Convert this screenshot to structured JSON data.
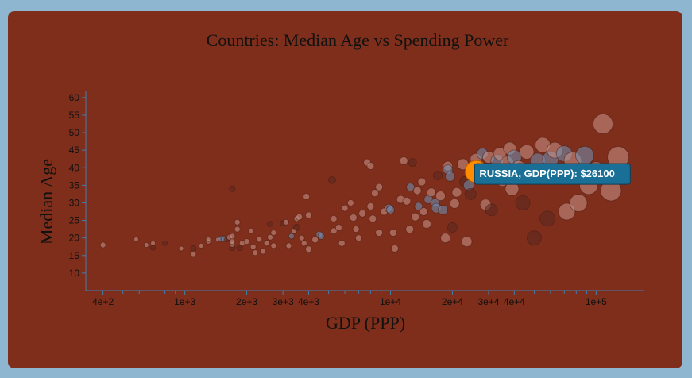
{
  "chart_data": {
    "type": "scatter",
    "title": "Countries: Median Age vs Spending Power",
    "xlabel": "GDP (PPP)",
    "ylabel": "Median Age",
    "x_scale": "log",
    "xlim": [
      330,
      170000
    ],
    "ylim": [
      5,
      62
    ],
    "x_ticks": [
      {
        "value": 400,
        "label": "4e+2"
      },
      {
        "value": 1000,
        "label": "1e+3"
      },
      {
        "value": 2000,
        "label": "2e+3"
      },
      {
        "value": 3000,
        "label": "3e+3"
      },
      {
        "value": 4000,
        "label": "4e+3"
      },
      {
        "value": 10000,
        "label": "1e+4"
      },
      {
        "value": 20000,
        "label": "2e+4"
      },
      {
        "value": 30000,
        "label": "3e+4"
      },
      {
        "value": 40000,
        "label": "4e+4"
      },
      {
        "value": 100000,
        "label": "1e+5"
      }
    ],
    "x_minor_ticks": [
      500,
      600,
      700,
      800,
      900,
      5000,
      6000,
      7000,
      8000,
      9000,
      50000,
      60000,
      70000,
      80000,
      90000
    ],
    "y_ticks": [
      10,
      15,
      20,
      25,
      30,
      35,
      40,
      45,
      50,
      55,
      60
    ],
    "grid": false,
    "colors": {
      "point_warm": "#c9958a",
      "point_dark": "#5a2a20",
      "point_blue": "#6f93b8",
      "highlight": "#ff8c00",
      "tooltip_bg": "#1a6f96"
    },
    "highlight": {
      "x": 26100,
      "y": 38.9,
      "tooltip": "RUSSIA, GDP(PPP): $26100"
    },
    "points": [
      {
        "x": 400,
        "y": 18,
        "s": 3.5,
        "c": "w"
      },
      {
        "x": 580,
        "y": 19.6,
        "s": 3,
        "c": "w"
      },
      {
        "x": 650,
        "y": 18,
        "s": 3,
        "c": "w"
      },
      {
        "x": 700,
        "y": 18.5,
        "s": 3,
        "c": "w"
      },
      {
        "x": 700,
        "y": 17.2,
        "s": 3,
        "c": "d"
      },
      {
        "x": 800,
        "y": 18.5,
        "s": 3,
        "c": "d"
      },
      {
        "x": 960,
        "y": 17,
        "s": 3,
        "c": "w"
      },
      {
        "x": 1100,
        "y": 15.5,
        "s": 3.5,
        "c": "w"
      },
      {
        "x": 1100,
        "y": 17,
        "s": 3.5,
        "c": "d"
      },
      {
        "x": 1200,
        "y": 17.8,
        "s": 3,
        "c": "w"
      },
      {
        "x": 1300,
        "y": 19,
        "s": 3,
        "c": "w"
      },
      {
        "x": 1300,
        "y": 19.6,
        "s": 3,
        "c": "w"
      },
      {
        "x": 1450,
        "y": 19.5,
        "s": 3,
        "c": "w"
      },
      {
        "x": 1500,
        "y": 19.8,
        "s": 3.5,
        "c": "b"
      },
      {
        "x": 1550,
        "y": 19.8,
        "s": 3.5,
        "c": "b"
      },
      {
        "x": 1600,
        "y": 19.6,
        "s": 3,
        "c": "d"
      },
      {
        "x": 1650,
        "y": 20.2,
        "s": 3.5,
        "c": "w"
      },
      {
        "x": 1700,
        "y": 34,
        "s": 3.5,
        "c": "d"
      },
      {
        "x": 1700,
        "y": 17.2,
        "s": 3.5,
        "c": "d"
      },
      {
        "x": 1700,
        "y": 18.2,
        "s": 3.5,
        "c": "w"
      },
      {
        "x": 1700,
        "y": 19,
        "s": 3.5,
        "c": "w"
      },
      {
        "x": 1700,
        "y": 20.5,
        "s": 3.5,
        "c": "w"
      },
      {
        "x": 1800,
        "y": 22.5,
        "s": 3.5,
        "c": "w"
      },
      {
        "x": 1800,
        "y": 24.5,
        "s": 3.5,
        "c": "w"
      },
      {
        "x": 1850,
        "y": 17.2,
        "s": 3.5,
        "c": "d"
      },
      {
        "x": 1900,
        "y": 18.5,
        "s": 3.5,
        "c": "w"
      },
      {
        "x": 2000,
        "y": 19,
        "s": 3.5,
        "c": "w"
      },
      {
        "x": 2100,
        "y": 22,
        "s": 3.5,
        "c": "w"
      },
      {
        "x": 2150,
        "y": 17.5,
        "s": 3.5,
        "c": "w"
      },
      {
        "x": 2200,
        "y": 15.8,
        "s": 3.5,
        "c": "w"
      },
      {
        "x": 2300,
        "y": 19.6,
        "s": 3.5,
        "c": "w"
      },
      {
        "x": 2400,
        "y": 16.2,
        "s": 3.5,
        "c": "w"
      },
      {
        "x": 2500,
        "y": 18.5,
        "s": 3.5,
        "c": "w"
      },
      {
        "x": 2600,
        "y": 24,
        "s": 3.5,
        "c": "d"
      },
      {
        "x": 2600,
        "y": 20.2,
        "s": 3.5,
        "c": "w"
      },
      {
        "x": 2700,
        "y": 21.5,
        "s": 3.5,
        "c": "w"
      },
      {
        "x": 2700,
        "y": 17.8,
        "s": 3.5,
        "c": "w"
      },
      {
        "x": 3000,
        "y": 24.2,
        "s": 3.5,
        "c": "d"
      },
      {
        "x": 3100,
        "y": 24.5,
        "s": 3.5,
        "c": "w"
      },
      {
        "x": 3200,
        "y": 17.8,
        "s": 3.5,
        "c": "w"
      },
      {
        "x": 3300,
        "y": 20.5,
        "s": 3.5,
        "c": "b"
      },
      {
        "x": 3400,
        "y": 22,
        "s": 3.5,
        "c": "w"
      },
      {
        "x": 3500,
        "y": 23,
        "s": 4,
        "c": "d"
      },
      {
        "x": 3500,
        "y": 25.5,
        "s": 3.5,
        "c": "w"
      },
      {
        "x": 3600,
        "y": 26,
        "s": 4,
        "c": "w"
      },
      {
        "x": 3700,
        "y": 20,
        "s": 3.5,
        "c": "w"
      },
      {
        "x": 3800,
        "y": 18.5,
        "s": 3.5,
        "c": "w"
      },
      {
        "x": 3900,
        "y": 31.8,
        "s": 4,
        "c": "w"
      },
      {
        "x": 4000,
        "y": 26.5,
        "s": 4,
        "c": "w"
      },
      {
        "x": 4000,
        "y": 16.8,
        "s": 4,
        "c": "w"
      },
      {
        "x": 4300,
        "y": 19.5,
        "s": 4,
        "c": "w"
      },
      {
        "x": 4500,
        "y": 21,
        "s": 4,
        "c": "b"
      },
      {
        "x": 4600,
        "y": 20.5,
        "s": 4,
        "c": "b"
      },
      {
        "x": 5200,
        "y": 36.5,
        "s": 4.5,
        "c": "d"
      },
      {
        "x": 5300,
        "y": 25.5,
        "s": 4,
        "c": "w"
      },
      {
        "x": 5300,
        "y": 22,
        "s": 4,
        "c": "w"
      },
      {
        "x": 5600,
        "y": 23,
        "s": 4,
        "c": "w"
      },
      {
        "x": 5800,
        "y": 18.5,
        "s": 4,
        "c": "w"
      },
      {
        "x": 6000,
        "y": 28.5,
        "s": 4,
        "c": "w"
      },
      {
        "x": 6400,
        "y": 30,
        "s": 4,
        "c": "w"
      },
      {
        "x": 6600,
        "y": 25.8,
        "s": 4.5,
        "c": "w"
      },
      {
        "x": 6800,
        "y": 22.5,
        "s": 4,
        "c": "w"
      },
      {
        "x": 7000,
        "y": 20,
        "s": 4,
        "c": "w"
      },
      {
        "x": 7300,
        "y": 27,
        "s": 4.5,
        "c": "w"
      },
      {
        "x": 7700,
        "y": 41.5,
        "s": 4.5,
        "c": "w"
      },
      {
        "x": 8000,
        "y": 40.5,
        "s": 4.5,
        "c": "w"
      },
      {
        "x": 8000,
        "y": 29,
        "s": 4.5,
        "c": "w"
      },
      {
        "x": 8200,
        "y": 25.5,
        "s": 4.5,
        "c": "w"
      },
      {
        "x": 8400,
        "y": 32.8,
        "s": 4.5,
        "c": "w"
      },
      {
        "x": 8800,
        "y": 34.5,
        "s": 4.5,
        "c": "w"
      },
      {
        "x": 8800,
        "y": 21.5,
        "s": 4.5,
        "c": "w"
      },
      {
        "x": 9300,
        "y": 27.5,
        "s": 4.5,
        "c": "w"
      },
      {
        "x": 9800,
        "y": 28.5,
        "s": 5,
        "c": "b"
      },
      {
        "x": 10000,
        "y": 28,
        "s": 5,
        "c": "b"
      },
      {
        "x": 10300,
        "y": 21.5,
        "s": 4.5,
        "c": "w"
      },
      {
        "x": 10500,
        "y": 17,
        "s": 4.5,
        "c": "w"
      },
      {
        "x": 11200,
        "y": 31,
        "s": 5,
        "c": "w"
      },
      {
        "x": 11600,
        "y": 42,
        "s": 5,
        "c": "w"
      },
      {
        "x": 12000,
        "y": 30.5,
        "s": 5,
        "c": "w"
      },
      {
        "x": 12400,
        "y": 22.5,
        "s": 5,
        "c": "w"
      },
      {
        "x": 12500,
        "y": 34.5,
        "s": 5,
        "c": "b"
      },
      {
        "x": 12800,
        "y": 41.5,
        "s": 5,
        "c": "d"
      },
      {
        "x": 13200,
        "y": 26,
        "s": 5,
        "c": "w"
      },
      {
        "x": 13500,
        "y": 33.5,
        "s": 5,
        "c": "w"
      },
      {
        "x": 13700,
        "y": 29,
        "s": 5,
        "c": "b"
      },
      {
        "x": 14200,
        "y": 36,
        "s": 5,
        "c": "w"
      },
      {
        "x": 14500,
        "y": 27.5,
        "s": 5,
        "c": "w"
      },
      {
        "x": 15000,
        "y": 24,
        "s": 5.5,
        "c": "w"
      },
      {
        "x": 15300,
        "y": 31,
        "s": 5.5,
        "c": "b"
      },
      {
        "x": 15800,
        "y": 33,
        "s": 5.5,
        "c": "w"
      },
      {
        "x": 16500,
        "y": 30,
        "s": 5.5,
        "c": "b"
      },
      {
        "x": 16700,
        "y": 28.5,
        "s": 6,
        "c": "b"
      },
      {
        "x": 17000,
        "y": 37.8,
        "s": 5.5,
        "c": "d"
      },
      {
        "x": 17500,
        "y": 32,
        "s": 6,
        "c": "w"
      },
      {
        "x": 18000,
        "y": 28,
        "s": 6,
        "c": "b"
      },
      {
        "x": 18500,
        "y": 20,
        "s": 6,
        "c": "w"
      },
      {
        "x": 19000,
        "y": 40.5,
        "s": 6,
        "c": "w"
      },
      {
        "x": 19000,
        "y": 39.5,
        "s": 6,
        "c": "b"
      },
      {
        "x": 19500,
        "y": 37.5,
        "s": 6,
        "c": "b"
      },
      {
        "x": 20000,
        "y": 23,
        "s": 6,
        "c": "d"
      },
      {
        "x": 20500,
        "y": 29.8,
        "s": 6,
        "c": "w"
      },
      {
        "x": 21000,
        "y": 33,
        "s": 6,
        "c": "w"
      },
      {
        "x": 22500,
        "y": 41,
        "s": 7,
        "c": "w"
      },
      {
        "x": 23000,
        "y": 36,
        "s": 6.5,
        "c": "d"
      },
      {
        "x": 23500,
        "y": 19,
        "s": 6.5,
        "c": "w"
      },
      {
        "x": 24000,
        "y": 35,
        "s": 6.5,
        "c": "b"
      },
      {
        "x": 24500,
        "y": 32.5,
        "s": 7,
        "c": "d"
      },
      {
        "x": 26000,
        "y": 42.5,
        "s": 7,
        "c": "w"
      },
      {
        "x": 27500,
        "y": 40,
        "s": 7,
        "c": "w"
      },
      {
        "x": 28000,
        "y": 44,
        "s": 7,
        "c": "b"
      },
      {
        "x": 29000,
        "y": 29.5,
        "s": 7,
        "c": "w"
      },
      {
        "x": 30000,
        "y": 43,
        "s": 7.5,
        "c": "w"
      },
      {
        "x": 31000,
        "y": 28,
        "s": 7.5,
        "c": "d"
      },
      {
        "x": 33000,
        "y": 42,
        "s": 8,
        "c": "b"
      },
      {
        "x": 34000,
        "y": 44,
        "s": 8,
        "c": "w"
      },
      {
        "x": 35000,
        "y": 36.5,
        "s": 8,
        "c": "w"
      },
      {
        "x": 37000,
        "y": 41.5,
        "s": 8,
        "c": "w"
      },
      {
        "x": 38000,
        "y": 45.5,
        "s": 8,
        "c": "w"
      },
      {
        "x": 39000,
        "y": 34,
        "s": 8.5,
        "c": "w"
      },
      {
        "x": 40000,
        "y": 43,
        "s": 9,
        "c": "b"
      },
      {
        "x": 42000,
        "y": 40,
        "s": 9,
        "c": "w"
      },
      {
        "x": 44000,
        "y": 30,
        "s": 9,
        "c": "d"
      },
      {
        "x": 46000,
        "y": 44.5,
        "s": 9,
        "c": "w"
      },
      {
        "x": 48000,
        "y": 38,
        "s": 9,
        "c": "w"
      },
      {
        "x": 50000,
        "y": 20,
        "s": 9,
        "c": "d"
      },
      {
        "x": 52000,
        "y": 42,
        "s": 9.5,
        "c": "b"
      },
      {
        "x": 55000,
        "y": 46.5,
        "s": 9.5,
        "c": "w"
      },
      {
        "x": 58000,
        "y": 25.5,
        "s": 9.5,
        "c": "d"
      },
      {
        "x": 60000,
        "y": 42.5,
        "s": 10,
        "c": "b"
      },
      {
        "x": 63000,
        "y": 45,
        "s": 10,
        "c": "w"
      },
      {
        "x": 66000,
        "y": 38.5,
        "s": 10,
        "c": "w"
      },
      {
        "x": 70000,
        "y": 44,
        "s": 10,
        "c": "b"
      },
      {
        "x": 72000,
        "y": 27.5,
        "s": 10.5,
        "c": "w"
      },
      {
        "x": 77000,
        "y": 42,
        "s": 11,
        "c": "w"
      },
      {
        "x": 82000,
        "y": 30,
        "s": 11,
        "c": "w"
      },
      {
        "x": 88000,
        "y": 43.5,
        "s": 11.5,
        "c": "b"
      },
      {
        "x": 92000,
        "y": 35,
        "s": 11.5,
        "c": "w"
      },
      {
        "x": 100000,
        "y": 39,
        "s": 12,
        "c": "w"
      },
      {
        "x": 108000,
        "y": 52.5,
        "s": 12.5,
        "c": "w"
      },
      {
        "x": 118000,
        "y": 33.5,
        "s": 13,
        "c": "w"
      },
      {
        "x": 128000,
        "y": 43,
        "s": 13.5,
        "c": "w"
      }
    ]
  }
}
